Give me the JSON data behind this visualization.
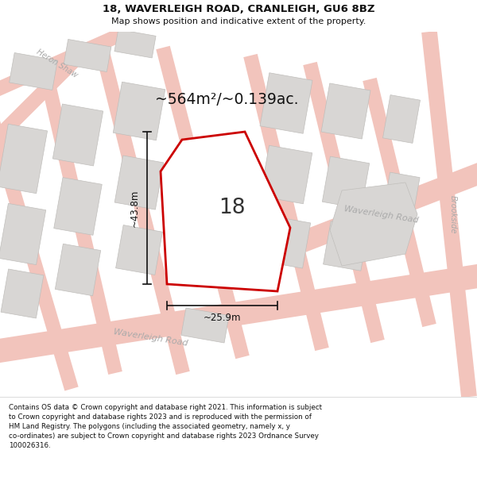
{
  "title": "18, WAVERLEIGH ROAD, CRANLEIGH, GU6 8BZ",
  "subtitle": "Map shows position and indicative extent of the property.",
  "area_label": "~564m²/~0.139ac.",
  "number_label": "18",
  "dim_h": "~43.8m",
  "dim_w": "~25.9m",
  "road_label_lower": "Waverleigh Road",
  "road_label_upper": "Waverleigh Road",
  "road_label_heron": "Heron Shaw",
  "road_label_brook": "Brookside",
  "footer_lines": [
    "Contains OS data © Crown copyright and database right 2021. This information is subject",
    "to Crown copyright and database rights 2023 and is reproduced with the permission of",
    "HM Land Registry. The polygons (including the associated geometry, namely x, y",
    "co-ordinates) are subject to Crown copyright and database rights 2023 Ordnance Survey",
    "100026316."
  ],
  "map_bg": "#ffffff",
  "road_fill": "#f2c4bc",
  "road_edge": "#e8a89e",
  "plot_fill": "#ffffff",
  "plot_stroke": "#cc0000",
  "building_fill": "#d8d6d4",
  "building_edge": "#c0bebb",
  "dim_color": "#111111",
  "road_text_color": "#aaaaaa",
  "label_color": "#111111"
}
